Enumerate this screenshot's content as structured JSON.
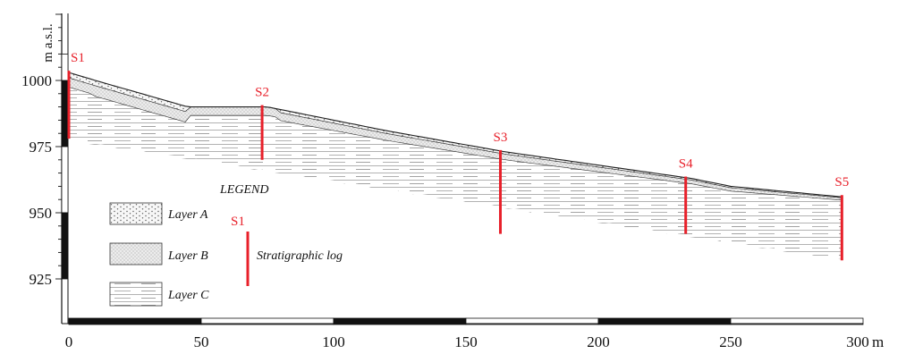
{
  "section": {
    "y_axis_label": "m a.s.l.",
    "x_unit": "m",
    "y_ticks": [
      1000,
      975,
      950,
      925
    ],
    "x_ticks": [
      0,
      50,
      100,
      150,
      200,
      250,
      300
    ],
    "x_range": [
      0,
      300
    ],
    "y_range": [
      925,
      1000
    ],
    "ground_surface": [
      [
        0,
        1003
      ],
      [
        10,
        1000
      ],
      [
        45,
        990
      ],
      [
        75,
        990
      ],
      [
        120,
        981
      ],
      [
        165,
        973
      ],
      [
        235,
        963
      ],
      [
        250,
        960
      ],
      [
        292,
        956
      ]
    ],
    "stratigraphic_logs": [
      {
        "name": "S1",
        "x": 0,
        "top": 1003,
        "bottom": 978
      },
      {
        "name": "S2",
        "x": 73,
        "top": 990,
        "bottom": 970
      },
      {
        "name": "S3",
        "x": 163,
        "top": 973,
        "bottom": 942
      },
      {
        "name": "S4",
        "x": 233,
        "top": 963,
        "bottom": 942
      },
      {
        "name": "S5",
        "x": 292,
        "top": 956,
        "bottom": 932
      }
    ]
  },
  "legend": {
    "title": "LEGEND",
    "items": [
      {
        "key": "layer-a",
        "label": "Layer A"
      },
      {
        "key": "layer-b",
        "label": "Layer B"
      },
      {
        "key": "layer-c",
        "label": "Layer C"
      }
    ],
    "log_symbol_label": "S1",
    "log_label": "Stratigraphic log"
  },
  "colors": {
    "log_red": "#e8202a",
    "ink": "#111111",
    "layer_b_fill": "#eeeeee"
  }
}
